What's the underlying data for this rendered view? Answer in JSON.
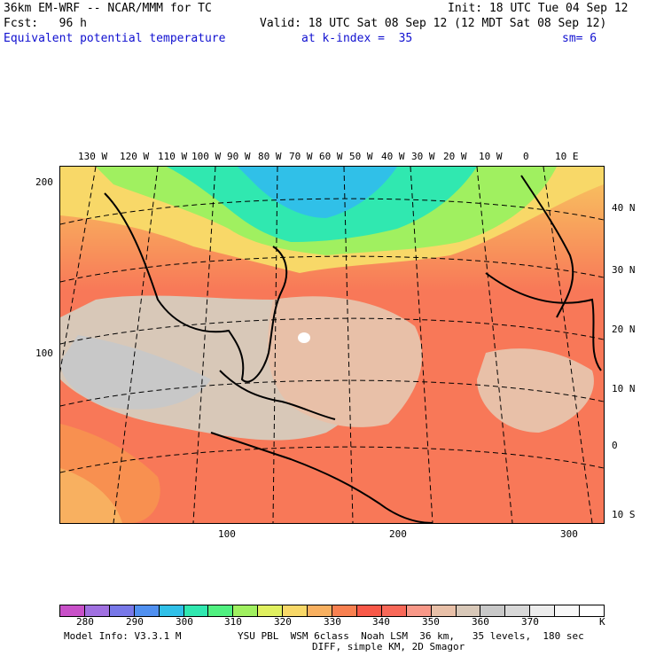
{
  "header": {
    "model_title": "36km EM-WRF -- NCAR/MMM for TC",
    "init": "Init: 18 UTC Tue 04 Sep 12",
    "fcst": "Fcst:   96 h",
    "valid": "Valid: 18 UTC Sat 08 Sep 12 (12 MDT Sat 08 Sep 12)",
    "field": "Equivalent potential temperature",
    "level": "at k-index =  35",
    "smooth": "sm= 6"
  },
  "map": {
    "lon_labels": [
      "130 W",
      "120 W",
      "110 W",
      "100 W",
      "90 W",
      "80 W",
      "70 W",
      "60 W",
      "50 W",
      "40 W",
      "30 W",
      "20 W",
      "10 W",
      "0",
      "10 E"
    ],
    "lat_labels": [
      "40 N",
      "30 N",
      "20 N",
      "10 N",
      "0",
      "10 S"
    ],
    "y_grid_labels": [
      "200",
      "100"
    ],
    "x_grid_labels": [
      "100",
      "200",
      "300"
    ]
  },
  "legend": {
    "colors": [
      "#c850c8",
      "#a070e0",
      "#7878e8",
      "#5090f0",
      "#30c0e8",
      "#30e8b0",
      "#50f080",
      "#a0f060",
      "#e0f060",
      "#f8d868",
      "#f8b060",
      "#f88050",
      "#f85848",
      "#f86858",
      "#f89888",
      "#e8c0a8",
      "#d8c8b8",
      "#c8c8c8",
      "#d8d8d8",
      "#ececec",
      "#f8f8f8",
      "#ffffff"
    ],
    "labels": [
      "280",
      "290",
      "300",
      "310",
      "320",
      "330",
      "340",
      "350",
      "360",
      "370"
    ],
    "unit": "K"
  },
  "footer": {
    "model_info": "Model Info: V3.3.1 M",
    "physics": "YSU PBL  WSM 6class  Noah LSM  36 km,   35 levels,  180 sec",
    "diff": "DIFF, simple KM, 2D Smagor"
  }
}
